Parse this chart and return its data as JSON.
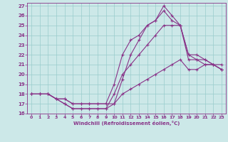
{
  "background_color": "#cce8e8",
  "grid_color": "#99cccc",
  "line_color": "#883388",
  "xlim": [
    -0.5,
    23.5
  ],
  "ylim": [
    16,
    27.3
  ],
  "yticks": [
    16,
    17,
    18,
    19,
    20,
    21,
    22,
    23,
    24,
    25,
    26,
    27
  ],
  "xticks": [
    0,
    1,
    2,
    3,
    4,
    5,
    6,
    7,
    8,
    9,
    10,
    11,
    12,
    13,
    14,
    15,
    16,
    17,
    18,
    19,
    20,
    21,
    22,
    23
  ],
  "xlabel": "Windchill (Refroidissement éolien,°C)",
  "lines": [
    {
      "x": [
        0,
        1,
        2,
        3,
        4,
        5,
        6,
        7,
        8,
        9,
        10,
        11,
        12,
        13,
        14,
        15,
        16,
        17,
        18,
        19,
        20,
        21,
        22,
        23
      ],
      "y": [
        18,
        18,
        18,
        17.5,
        17,
        16.5,
        16.5,
        16.5,
        16.5,
        16.5,
        17,
        18,
        18.5,
        19,
        19.5,
        20,
        20.5,
        21,
        21.5,
        20.5,
        20.5,
        21,
        21,
        20.5
      ]
    },
    {
      "x": [
        0,
        1,
        2,
        3,
        4,
        5,
        6,
        7,
        8,
        9,
        10,
        11,
        12,
        13,
        14,
        15,
        16,
        17,
        18,
        19,
        20,
        21,
        22,
        23
      ],
      "y": [
        18,
        18,
        18,
        17.5,
        17,
        16.5,
        16.5,
        16.5,
        16.5,
        16.5,
        18,
        20,
        21,
        22,
        23,
        24,
        25,
        25,
        25,
        22,
        22,
        21.5,
        21,
        21
      ]
    },
    {
      "x": [
        0,
        1,
        2,
        3,
        4,
        5,
        6,
        7,
        8,
        9,
        10,
        11,
        12,
        13,
        14,
        15,
        16,
        17,
        18,
        19,
        20,
        21,
        22,
        23
      ],
      "y": [
        18,
        18,
        18,
        17.5,
        17.5,
        17,
        17,
        17,
        17,
        17,
        17,
        19.5,
        22,
        23.5,
        25,
        25.5,
        26.5,
        25.5,
        25,
        21.5,
        21.5,
        21.5,
        21,
        20.5
      ]
    },
    {
      "x": [
        0,
        1,
        2,
        3,
        4,
        5,
        6,
        7,
        8,
        9,
        10,
        11,
        12,
        13,
        14,
        15,
        16,
        17,
        18,
        19,
        20,
        21,
        22,
        23
      ],
      "y": [
        18,
        18,
        18,
        17.5,
        17.5,
        17,
        17,
        17,
        17,
        17,
        19,
        22,
        23.5,
        24,
        25,
        25.5,
        27,
        26,
        25,
        22,
        21.5,
        21,
        21,
        20.5
      ]
    }
  ]
}
